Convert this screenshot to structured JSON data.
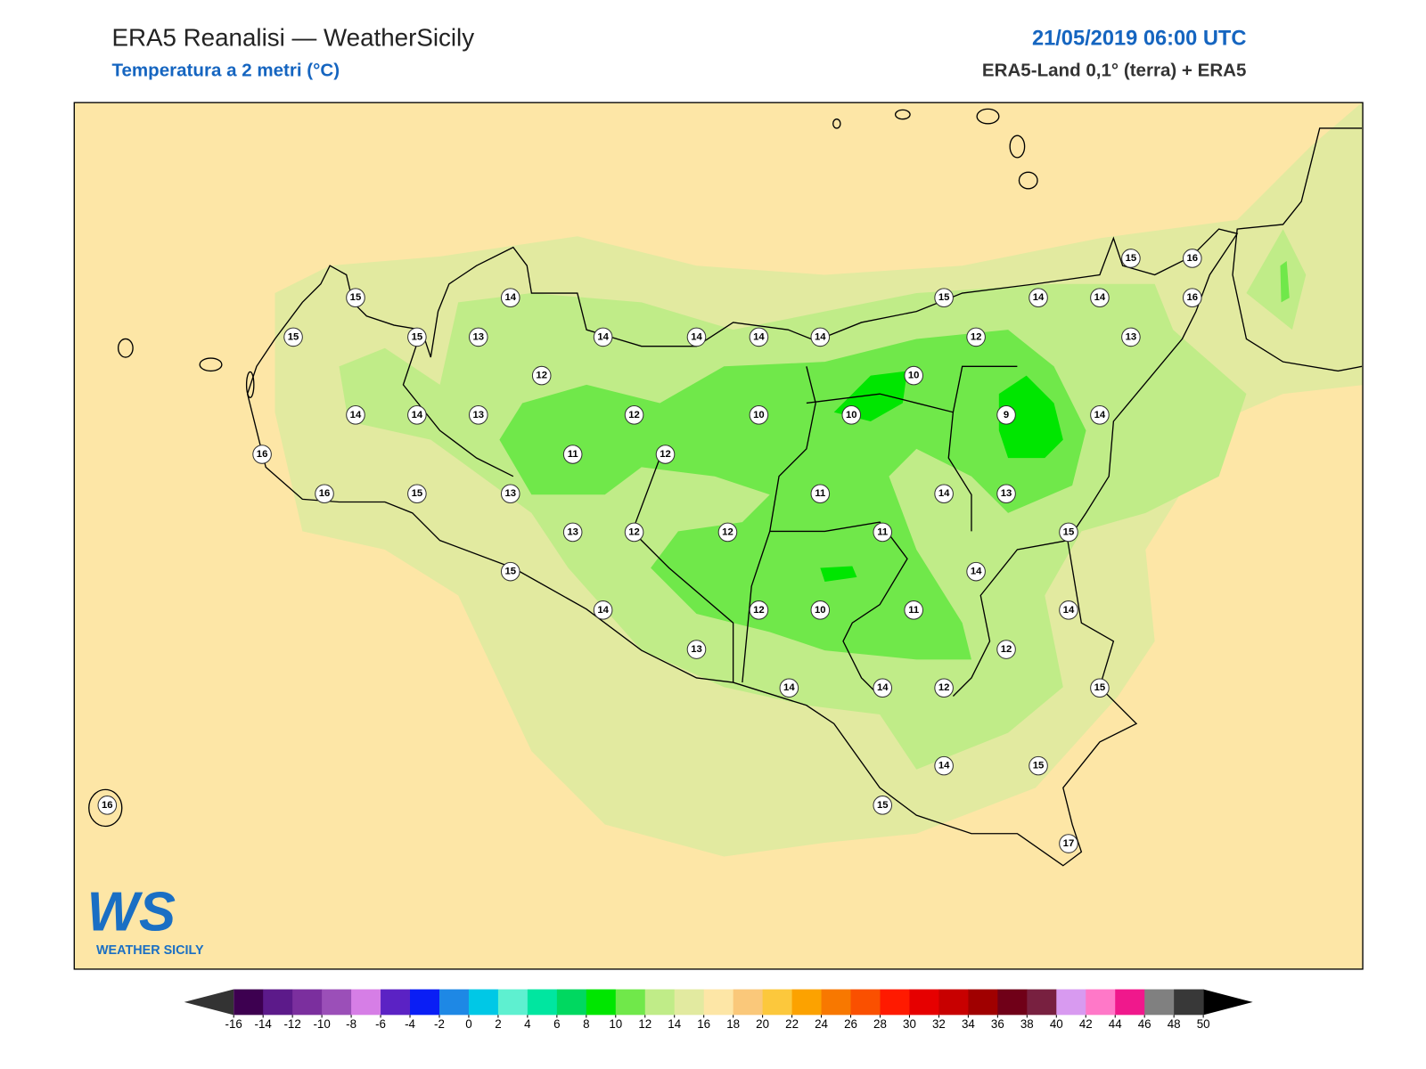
{
  "header": {
    "title": "ERA5 Reanalisi — WeatherSicily",
    "subtitle": "Temperatura a 2 metri (°C)",
    "datetime": "21/05/2019 06:00 UTC",
    "source": "ERA5-Land 0,1° (terra) + ERA5"
  },
  "stations": [
    15,
    14,
    15,
    15,
    13,
    14,
    14,
    14,
    14,
    15,
    14,
    14,
    15,
    16,
    16,
    12,
    13,
    12,
    10,
    14,
    14,
    13,
    12,
    10,
    10,
    9,
    14,
    16,
    11,
    12,
    16,
    15,
    13,
    11,
    14,
    13,
    13,
    12,
    12,
    11,
    15,
    15,
    14,
    14,
    12,
    10,
    11,
    14,
    13,
    12,
    14,
    14,
    12,
    15,
    14,
    15,
    15,
    17,
    16
  ],
  "colorbar": {
    "ticks": [
      -16,
      -14,
      -12,
      -10,
      -8,
      -6,
      -4,
      -2,
      0,
      2,
      4,
      6,
      8,
      10,
      12,
      14,
      16,
      18,
      20,
      22,
      24,
      26,
      28,
      30,
      32,
      34,
      36,
      38,
      40,
      42,
      44,
      46,
      48,
      50
    ],
    "colors": [
      "#3d0050",
      "#5c1a8a",
      "#7b2f9e",
      "#9b4fb8",
      "#d67ee6",
      "#5b22c4",
      "#0a1ef5",
      "#1e88e5",
      "#00c8e6",
      "#5ef0d0",
      "#00e6a0",
      "#00d860",
      "#00e600",
      "#70e84a",
      "#c0ec88",
      "#e2eaa0",
      "#fde6a6",
      "#fac87a",
      "#fcc83c",
      "#fca200",
      "#f87800",
      "#fa5000",
      "#ff1a00",
      "#e60000",
      "#c80000",
      "#a00000",
      "#700018",
      "#782040",
      "#d89af0",
      "#ff78c8",
      "#f0188c",
      "#808080",
      "#383838"
    ],
    "under_color": "#333333",
    "over_color": "#000000"
  },
  "logo": {
    "mark": "WS",
    "name": "WEATHER SICILY"
  }
}
